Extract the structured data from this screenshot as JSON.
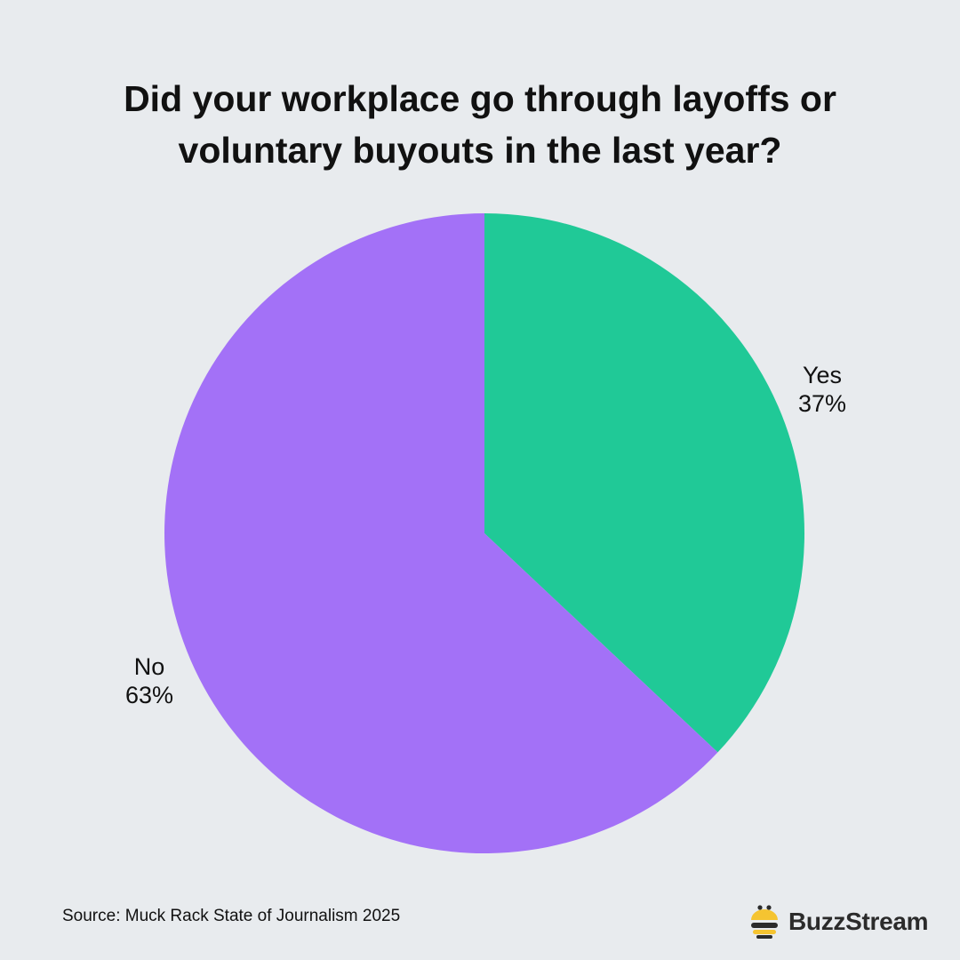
{
  "chart_data": {
    "type": "pie",
    "title_lines": [
      "Did your workplace go through layoffs or",
      "voluntary buyouts in the last year?"
    ],
    "slices": [
      {
        "label": "Yes",
        "value": 37,
        "value_label": "37%",
        "color": "#20c997"
      },
      {
        "label": "No",
        "value": 63,
        "value_label": "63%",
        "color": "#a371f7"
      }
    ],
    "start_angle": "12 o'clock",
    "direction": "clockwise"
  },
  "footer": {
    "source": "Source: Muck Rack State of Journalism 2025",
    "brand": "BuzzStream",
    "brand_icon": "bee-icon"
  },
  "colors": {
    "background": "#e8ebee",
    "text": "#111111",
    "bee_yellow": "#f5c431",
    "bee_dark": "#2b2b2b"
  }
}
